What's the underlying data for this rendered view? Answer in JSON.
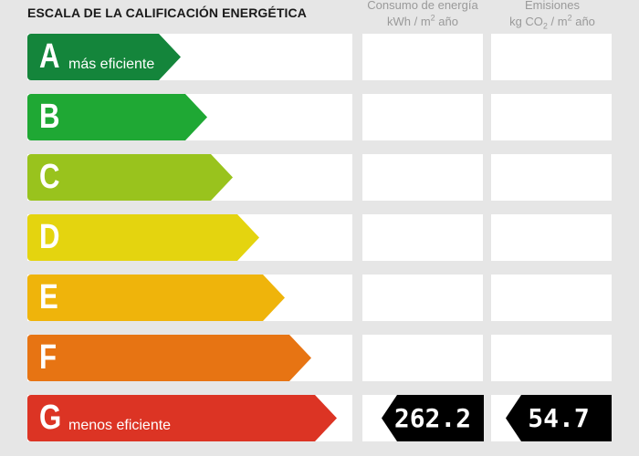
{
  "header": {
    "title": "ESCALA DE LA CALIFICACIÓN ENERGÉTICA",
    "col1_line1": "Consumo de energía",
    "col1_unit_a": "kWh / m",
    "col1_unit_sup": "2",
    "col1_unit_b": " año",
    "col2_line1": "Emisiones",
    "col2_unit_a": "kg CO",
    "col2_unit_sub": "2",
    "col2_unit_b": " / m",
    "col2_unit_sup": "2",
    "col2_unit_c": " año"
  },
  "ratings": [
    {
      "letter": "A",
      "label": "más eficiente",
      "color": "#14853b"
    },
    {
      "letter": "B",
      "label": "",
      "color": "#1fa834"
    },
    {
      "letter": "C",
      "label": "",
      "color": "#99c31d"
    },
    {
      "letter": "D",
      "label": "",
      "color": "#e4d40f"
    },
    {
      "letter": "E",
      "label": "",
      "color": "#efb40b"
    },
    {
      "letter": "F",
      "label": "",
      "color": "#e77413"
    },
    {
      "letter": "G",
      "label": "menos eficiente",
      "color": "#dc3424"
    }
  ],
  "result": {
    "rating": "G",
    "consumo": "262.2",
    "emisiones": "54.7"
  }
}
